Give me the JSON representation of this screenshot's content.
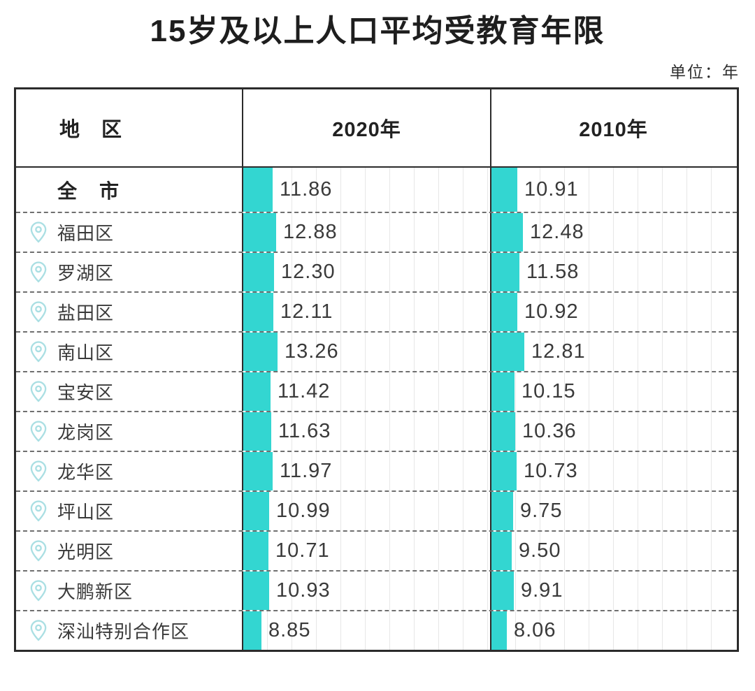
{
  "title": "15岁及以上人口平均受教育年限",
  "unit_label": "单位：年",
  "columns": [
    "地　区",
    "2020年",
    "2010年"
  ],
  "colors": {
    "bar": "#33d6d1",
    "pin_outline": "#aadfe3",
    "border": "#2b2b2b"
  },
  "icons": {
    "row_marker": "location-pin-icon"
  },
  "chart_data": {
    "type": "bar",
    "title": "15岁及以上人口平均受教育年限",
    "unit": "年",
    "orientation": "horizontal",
    "categories": [
      "全市",
      "福田区",
      "罗湖区",
      "盐田区",
      "南山区",
      "宝安区",
      "龙岗区",
      "龙华区",
      "坪山区",
      "光明区",
      "大鹏新区",
      "深汕特别合作区"
    ],
    "series": [
      {
        "name": "2020年",
        "values": [
          11.86,
          12.88,
          12.3,
          12.11,
          13.26,
          11.42,
          11.63,
          11.97,
          10.99,
          10.71,
          10.93,
          8.85
        ]
      },
      {
        "name": "2010年",
        "values": [
          10.91,
          12.48,
          11.58,
          10.92,
          12.81,
          10.15,
          10.36,
          10.73,
          9.75,
          9.5,
          9.91,
          8.06
        ]
      }
    ]
  },
  "rows": [
    {
      "label": "全　市",
      "is_total": true,
      "y2020": "11.86",
      "y2010": "10.91"
    },
    {
      "label": "福田区",
      "is_total": false,
      "y2020": "12.88",
      "y2010": "12.48"
    },
    {
      "label": "罗湖区",
      "is_total": false,
      "y2020": "12.30",
      "y2010": "11.58"
    },
    {
      "label": "盐田区",
      "is_total": false,
      "y2020": "12.11",
      "y2010": "10.92"
    },
    {
      "label": "南山区",
      "is_total": false,
      "y2020": "13.26",
      "y2010": "12.81"
    },
    {
      "label": "宝安区",
      "is_total": false,
      "y2020": "11.42",
      "y2010": "10.15"
    },
    {
      "label": "龙岗区",
      "is_total": false,
      "y2020": "11.63",
      "y2010": "10.36"
    },
    {
      "label": "龙华区",
      "is_total": false,
      "y2020": "11.97",
      "y2010": "10.73"
    },
    {
      "label": "坪山区",
      "is_total": false,
      "y2020": "10.99",
      "y2010": "9.75"
    },
    {
      "label": "光明区",
      "is_total": false,
      "y2020": "10.71",
      "y2010": "9.50"
    },
    {
      "label": "大鹏新区",
      "is_total": false,
      "y2020": "10.93",
      "y2010": "9.91"
    },
    {
      "label": "深汕特别合作区",
      "is_total": false,
      "y2020": "8.85",
      "y2010": "8.06"
    }
  ]
}
